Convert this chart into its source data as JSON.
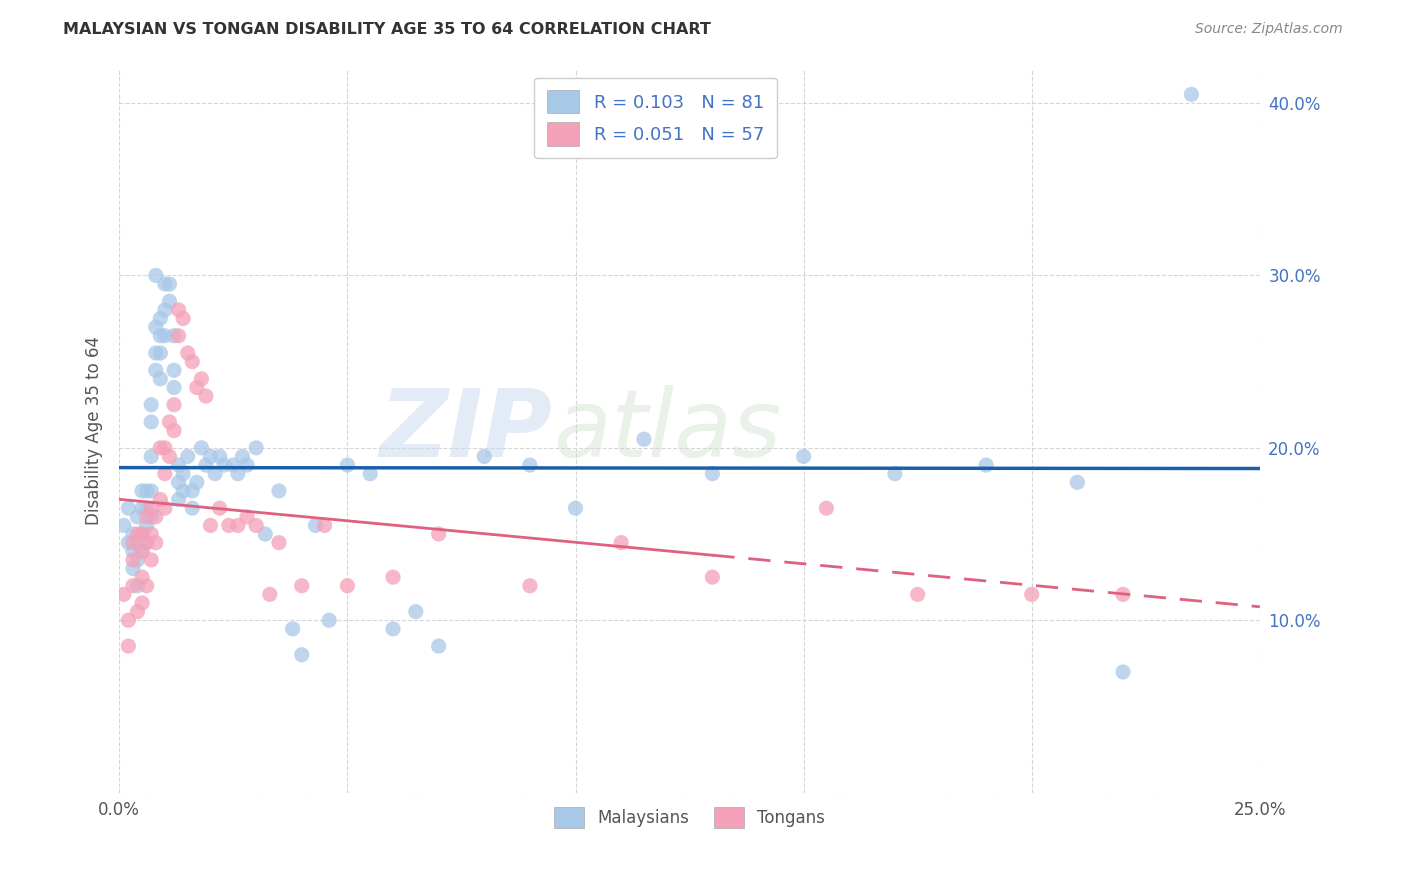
{
  "title": "MALAYSIAN VS TONGAN DISABILITY AGE 35 TO 64 CORRELATION CHART",
  "source": "Source: ZipAtlas.com",
  "ylabel": "Disability Age 35 to 64",
  "xlim": [
    0.0,
    0.25
  ],
  "ylim": [
    0.0,
    0.42
  ],
  "malaysian_color": "#a8c8e8",
  "tongan_color": "#f4a0b8",
  "malaysian_line_color": "#1a5fa8",
  "tongan_line_color": "#e06080",
  "watermark": "ZIPatlas",
  "legend_line1": "R = 0.103   N = 81",
  "legend_line2": "R = 0.051   N = 57",
  "malaysian_x": [
    0.001,
    0.002,
    0.002,
    0.003,
    0.003,
    0.003,
    0.004,
    0.004,
    0.004,
    0.004,
    0.005,
    0.005,
    0.005,
    0.005,
    0.006,
    0.006,
    0.006,
    0.006,
    0.007,
    0.007,
    0.007,
    0.007,
    0.007,
    0.008,
    0.008,
    0.008,
    0.008,
    0.009,
    0.009,
    0.009,
    0.009,
    0.01,
    0.01,
    0.01,
    0.011,
    0.011,
    0.012,
    0.012,
    0.012,
    0.013,
    0.013,
    0.013,
    0.014,
    0.014,
    0.015,
    0.016,
    0.016,
    0.017,
    0.018,
    0.019,
    0.02,
    0.021,
    0.022,
    0.023,
    0.025,
    0.026,
    0.027,
    0.028,
    0.03,
    0.032,
    0.035,
    0.038,
    0.04,
    0.043,
    0.046,
    0.05,
    0.055,
    0.06,
    0.065,
    0.07,
    0.08,
    0.09,
    0.1,
    0.115,
    0.13,
    0.15,
    0.17,
    0.19,
    0.21,
    0.22,
    0.235
  ],
  "malaysian_y": [
    0.155,
    0.145,
    0.165,
    0.15,
    0.14,
    0.13,
    0.16,
    0.145,
    0.135,
    0.12,
    0.175,
    0.165,
    0.15,
    0.14,
    0.175,
    0.165,
    0.155,
    0.145,
    0.225,
    0.215,
    0.195,
    0.175,
    0.16,
    0.27,
    0.255,
    0.245,
    0.3,
    0.275,
    0.265,
    0.255,
    0.24,
    0.295,
    0.28,
    0.265,
    0.295,
    0.285,
    0.265,
    0.245,
    0.235,
    0.19,
    0.18,
    0.17,
    0.185,
    0.175,
    0.195,
    0.175,
    0.165,
    0.18,
    0.2,
    0.19,
    0.195,
    0.185,
    0.195,
    0.19,
    0.19,
    0.185,
    0.195,
    0.19,
    0.2,
    0.15,
    0.175,
    0.095,
    0.08,
    0.155,
    0.1,
    0.19,
    0.185,
    0.095,
    0.105,
    0.085,
    0.195,
    0.19,
    0.165,
    0.205,
    0.185,
    0.195,
    0.185,
    0.19,
    0.18,
    0.07,
    0.405
  ],
  "tongan_x": [
    0.001,
    0.002,
    0.002,
    0.003,
    0.003,
    0.003,
    0.004,
    0.004,
    0.005,
    0.005,
    0.005,
    0.005,
    0.006,
    0.006,
    0.006,
    0.007,
    0.007,
    0.007,
    0.008,
    0.008,
    0.009,
    0.009,
    0.01,
    0.01,
    0.01,
    0.011,
    0.011,
    0.012,
    0.012,
    0.013,
    0.013,
    0.014,
    0.015,
    0.016,
    0.017,
    0.018,
    0.019,
    0.02,
    0.022,
    0.024,
    0.026,
    0.028,
    0.03,
    0.033,
    0.035,
    0.04,
    0.045,
    0.05,
    0.06,
    0.07,
    0.09,
    0.11,
    0.13,
    0.155,
    0.175,
    0.2,
    0.22
  ],
  "tongan_y": [
    0.115,
    0.1,
    0.085,
    0.145,
    0.135,
    0.12,
    0.15,
    0.105,
    0.15,
    0.14,
    0.125,
    0.11,
    0.16,
    0.145,
    0.12,
    0.165,
    0.15,
    0.135,
    0.16,
    0.145,
    0.2,
    0.17,
    0.2,
    0.185,
    0.165,
    0.215,
    0.195,
    0.225,
    0.21,
    0.28,
    0.265,
    0.275,
    0.255,
    0.25,
    0.235,
    0.24,
    0.23,
    0.155,
    0.165,
    0.155,
    0.155,
    0.16,
    0.155,
    0.115,
    0.145,
    0.12,
    0.155,
    0.12,
    0.125,
    0.15,
    0.12,
    0.145,
    0.125,
    0.165,
    0.115,
    0.115,
    0.115
  ]
}
